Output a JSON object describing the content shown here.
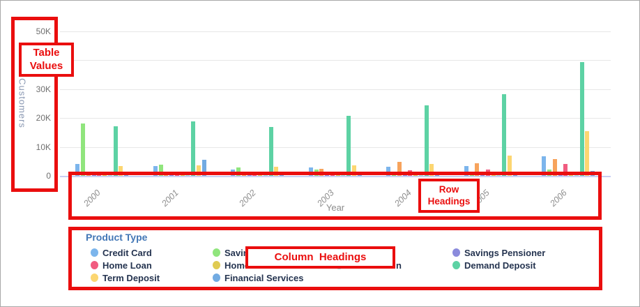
{
  "annotations": {
    "color": "#ea0e0e",
    "table_values": {
      "line1": "Table",
      "line2": "Values"
    },
    "row_headings": {
      "line1": "Row",
      "line2": "Headings"
    },
    "column_headings": {
      "text": "Column  Headings"
    }
  },
  "chart_data": {
    "type": "bar",
    "title": "",
    "xlabel": "Year",
    "ylabel": "Customers",
    "legend_title": "Product Type",
    "legend_position": "bottom",
    "grid": true,
    "ylim": [
      0,
      50000
    ],
    "y_gridlines": [
      50000,
      40000,
      30000,
      20000,
      10000
    ],
    "y_ticks": [
      {
        "value": 50000,
        "label": "50K"
      },
      {
        "value": 30000,
        "label": "30K"
      },
      {
        "value": 20000,
        "label": "20K"
      },
      {
        "value": 10000,
        "label": "10K"
      },
      {
        "value": 0,
        "label": "0"
      }
    ],
    "categories": [
      "2000",
      "2001",
      "2002",
      "2003",
      "2004",
      "2005",
      "2006"
    ],
    "series": [
      {
        "name": "Credit Card",
        "color": "#7cb5ec",
        "legend_col": 0,
        "legend_row": 0,
        "values": [
          4200,
          3400,
          2100,
          3000,
          3200,
          3400,
          6800
        ]
      },
      {
        "name": "Savings",
        "color": "#90e57d",
        "legend_col": 1,
        "legend_row": 0,
        "values": [
          18000,
          3900,
          2900,
          2300,
          1100,
          1200,
          2200
        ]
      },
      {
        "name": "",
        "color": "#f7a35c",
        "legend_col": 2,
        "legend_row": 0,
        "values": [
          1100,
          1200,
          1000,
          2400,
          4800,
          4300,
          5900
        ]
      },
      {
        "name": "Savings Pensioner",
        "color": "#8b8bdc",
        "legend_col": 3,
        "legend_row": 0,
        "values": [
          300,
          1100,
          400,
          400,
          400,
          500,
          1000
        ]
      },
      {
        "name": "Home Loan",
        "color": "#f15c80",
        "legend_col": 0,
        "legend_row": 1,
        "values": [
          500,
          1200,
          800,
          1400,
          1900,
          2100,
          4200
        ]
      },
      {
        "name": "Home",
        "color": "#e0cb52",
        "legend_col": 1,
        "legend_row": 1,
        "values": [
          200,
          400,
          300,
          400,
          500,
          500,
          500
        ]
      },
      {
        "name": "n",
        "color": "#9fe8df",
        "legend_col": 2,
        "legend_row": 1,
        "label_x": 567,
        "values": [
          200,
          300,
          300,
          400,
          800,
          900,
          1100
        ]
      },
      {
        "name": "Demand Deposit",
        "color": "#5dd2a4",
        "legend_col": 3,
        "legend_row": 1,
        "values": [
          17000,
          18800,
          16900,
          20800,
          24400,
          28300,
          39400
        ]
      },
      {
        "name": "Term Deposit",
        "color": "#fcd671",
        "legend_col": 0,
        "legend_row": 2,
        "values": [
          3400,
          3600,
          3200,
          3600,
          4000,
          7000,
          15400
        ]
      },
      {
        "name": "Financial Services",
        "color": "#72abe2",
        "legend_col": 1,
        "legend_row": 2,
        "values": [
          300,
          5600,
          700,
          900,
          1000,
          1100,
          1800
        ]
      }
    ]
  }
}
